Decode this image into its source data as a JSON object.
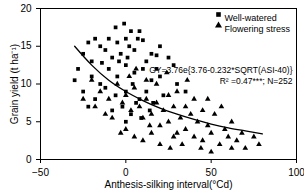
{
  "chart_data": {
    "type": "scatter",
    "x_label": "Anthesis-silking interval(°Cd)",
    "y_label": "Grain yield (t ha⁻¹)",
    "xlim": [
      -50,
      100
    ],
    "xticks": [
      -50,
      0,
      50,
      100
    ],
    "ylim": [
      0,
      20
    ],
    "yticks": [
      0,
      5,
      10,
      15,
      20
    ],
    "legend": "top-right",
    "annotations": [
      "GY=3.76e{3.76-0.232*SQRT(ASI-40)}",
      "R² =0.47***; N=252"
    ],
    "series": [
      {
        "name": "Well-watered",
        "type": "scatter",
        "marker": "square",
        "color": "#000000",
        "x": [
          -25,
          -22,
          -20,
          -18,
          -15,
          -12,
          -10,
          -8,
          -5,
          -3,
          0,
          2,
          5,
          7,
          10,
          12,
          15,
          18,
          20,
          25,
          28,
          -20,
          -15,
          -10,
          -5,
          0,
          5,
          10,
          15,
          20,
          -25,
          -18,
          -12,
          -6,
          0,
          4,
          8,
          12,
          16,
          22,
          -28,
          -30,
          -8,
          -2,
          3,
          6,
          9,
          14,
          0,
          -4,
          1,
          -14,
          30,
          -22,
          18,
          3,
          -6,
          8,
          -1,
          35
        ],
        "values": [
          14,
          15.5,
          13,
          16,
          15,
          14.5,
          16,
          13.5,
          15.5,
          14,
          16,
          15,
          14.5,
          16,
          15.8,
          13,
          14,
          12,
          15,
          13.5,
          12.5,
          11,
          10,
          12,
          11,
          12.5,
          11.5,
          12,
          10.5,
          11,
          9,
          8,
          9.5,
          8.5,
          9,
          10,
          8,
          9,
          7.5,
          8.5,
          12,
          10.5,
          6.5,
          7,
          6,
          7.5,
          5.5,
          6.5,
          5,
          13,
          13.5,
          12.8,
          10,
          7,
          13.8,
          17,
          17.5,
          17,
          18,
          9
        ]
      },
      {
        "name": "Flowering stress",
        "type": "scatter",
        "marker": "triangle",
        "color": "#000000",
        "x": [
          -20,
          -15,
          -10,
          -5,
          -2,
          0,
          3,
          5,
          8,
          10,
          12,
          15,
          18,
          20,
          22,
          25,
          28,
          30,
          32,
          35,
          38,
          40,
          42,
          45,
          48,
          50,
          52,
          55,
          58,
          60,
          62,
          65,
          68,
          70,
          75,
          78,
          0,
          5,
          10,
          15,
          20,
          25,
          30,
          35,
          40,
          45,
          -8,
          -12,
          -18,
          -25,
          2,
          6,
          12,
          18,
          24,
          28,
          33,
          44,
          50,
          56,
          14,
          -3,
          36,
          62,
          48,
          26
        ],
        "values": [
          10.5,
          9,
          8,
          10,
          7.5,
          8.5,
          6.5,
          9.5,
          7,
          5.5,
          8,
          6,
          7.5,
          4.5,
          6.5,
          5,
          7,
          3.5,
          5.5,
          4,
          6,
          3,
          5,
          2.5,
          4.5,
          3.5,
          6,
          2,
          4,
          3,
          5,
          2.5,
          3.5,
          1.5,
          3,
          2,
          4,
          3,
          2.5,
          3.5,
          2,
          8.5,
          9,
          7,
          8,
          6.5,
          5.5,
          6,
          7,
          8,
          11,
          12,
          10.5,
          10,
          11.5,
          3,
          2,
          1.5,
          1,
          7,
          4.5,
          3.5,
          10.5,
          1.5,
          8,
          1.5
        ]
      },
      {
        "type": "line",
        "line_style": "solid",
        "color": "#000000",
        "x": [
          -30,
          -20,
          -10,
          0,
          10,
          20,
          30,
          40,
          50,
          60,
          70,
          80
        ],
        "values": [
          15,
          12.5,
          10.5,
          9,
          7.8,
          6.8,
          6,
          5.3,
          4.7,
          4.2,
          3.8,
          3.4
        ]
      }
    ]
  }
}
